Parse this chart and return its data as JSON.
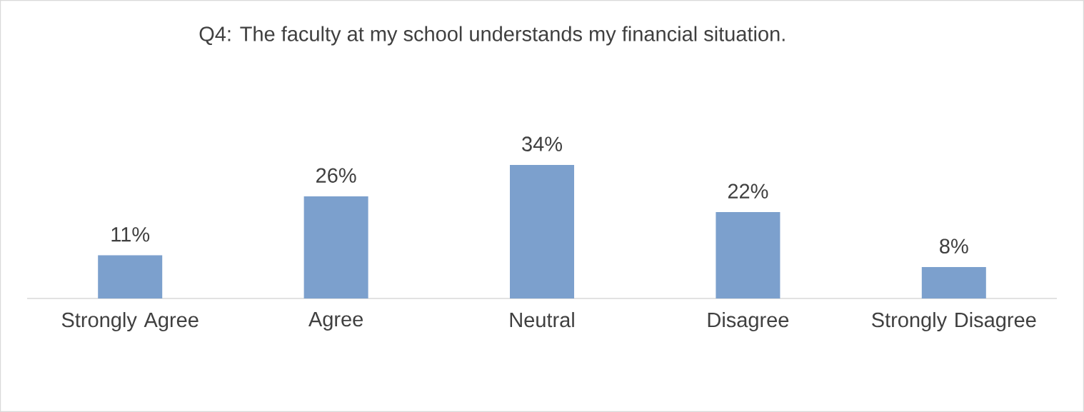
{
  "chart_data": {
    "type": "bar",
    "title": "Q4: The faculty at my school understands my financial situation.",
    "categories": [
      "Strongly Agree",
      "Agree",
      "Neutral",
      "Disagree",
      "Strongly Disagree"
    ],
    "values": [
      11,
      26,
      34,
      22,
      8
    ],
    "value_labels": [
      "11%",
      "26%",
      "34%",
      "22%",
      "8%"
    ],
    "color": "#7ca0cd"
  }
}
